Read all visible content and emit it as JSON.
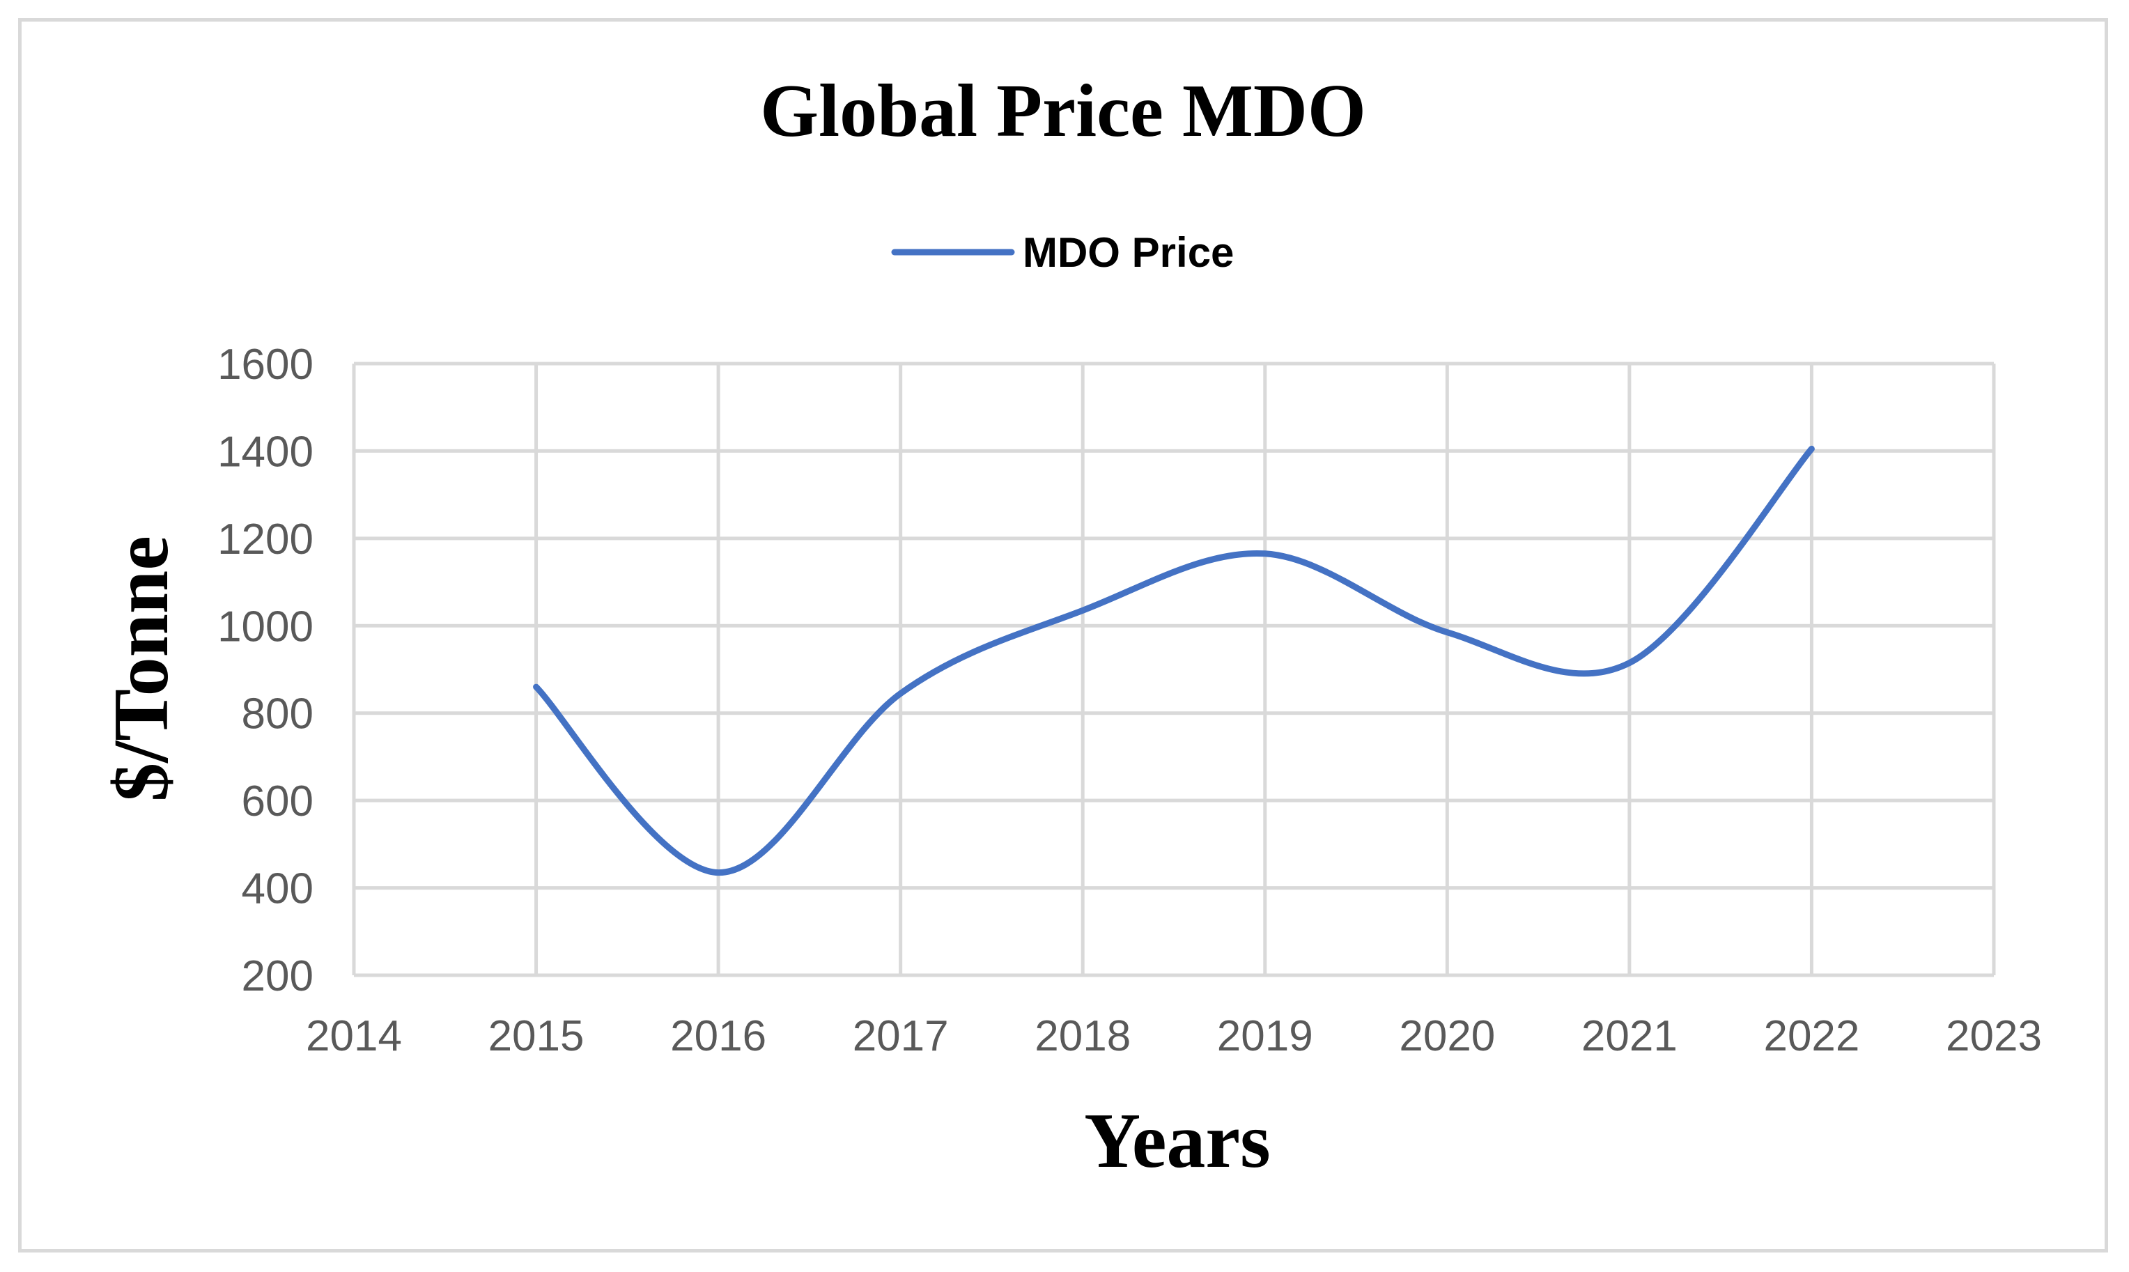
{
  "chart_data": {
    "type": "line",
    "title": "Global Price MDO",
    "xlabel": "Years",
    "ylabel": "$/Tonne",
    "xlim": [
      2014,
      2023
    ],
    "ylim": [
      200,
      1600
    ],
    "xticks": [
      2014,
      2015,
      2016,
      2017,
      2018,
      2019,
      2020,
      2021,
      2022,
      2023
    ],
    "yticks": [
      200,
      400,
      600,
      800,
      1000,
      1200,
      1400,
      1600
    ],
    "grid": true,
    "smooth": true,
    "legend_position": "top-center",
    "series": [
      {
        "name": "MDO Price",
        "color": "#4472c4",
        "x": [
          2015,
          2016,
          2017,
          2018,
          2019,
          2020,
          2021,
          2022
        ],
        "y": [
          860,
          435,
          845,
          1035,
          1165,
          985,
          915,
          1405
        ]
      }
    ]
  }
}
